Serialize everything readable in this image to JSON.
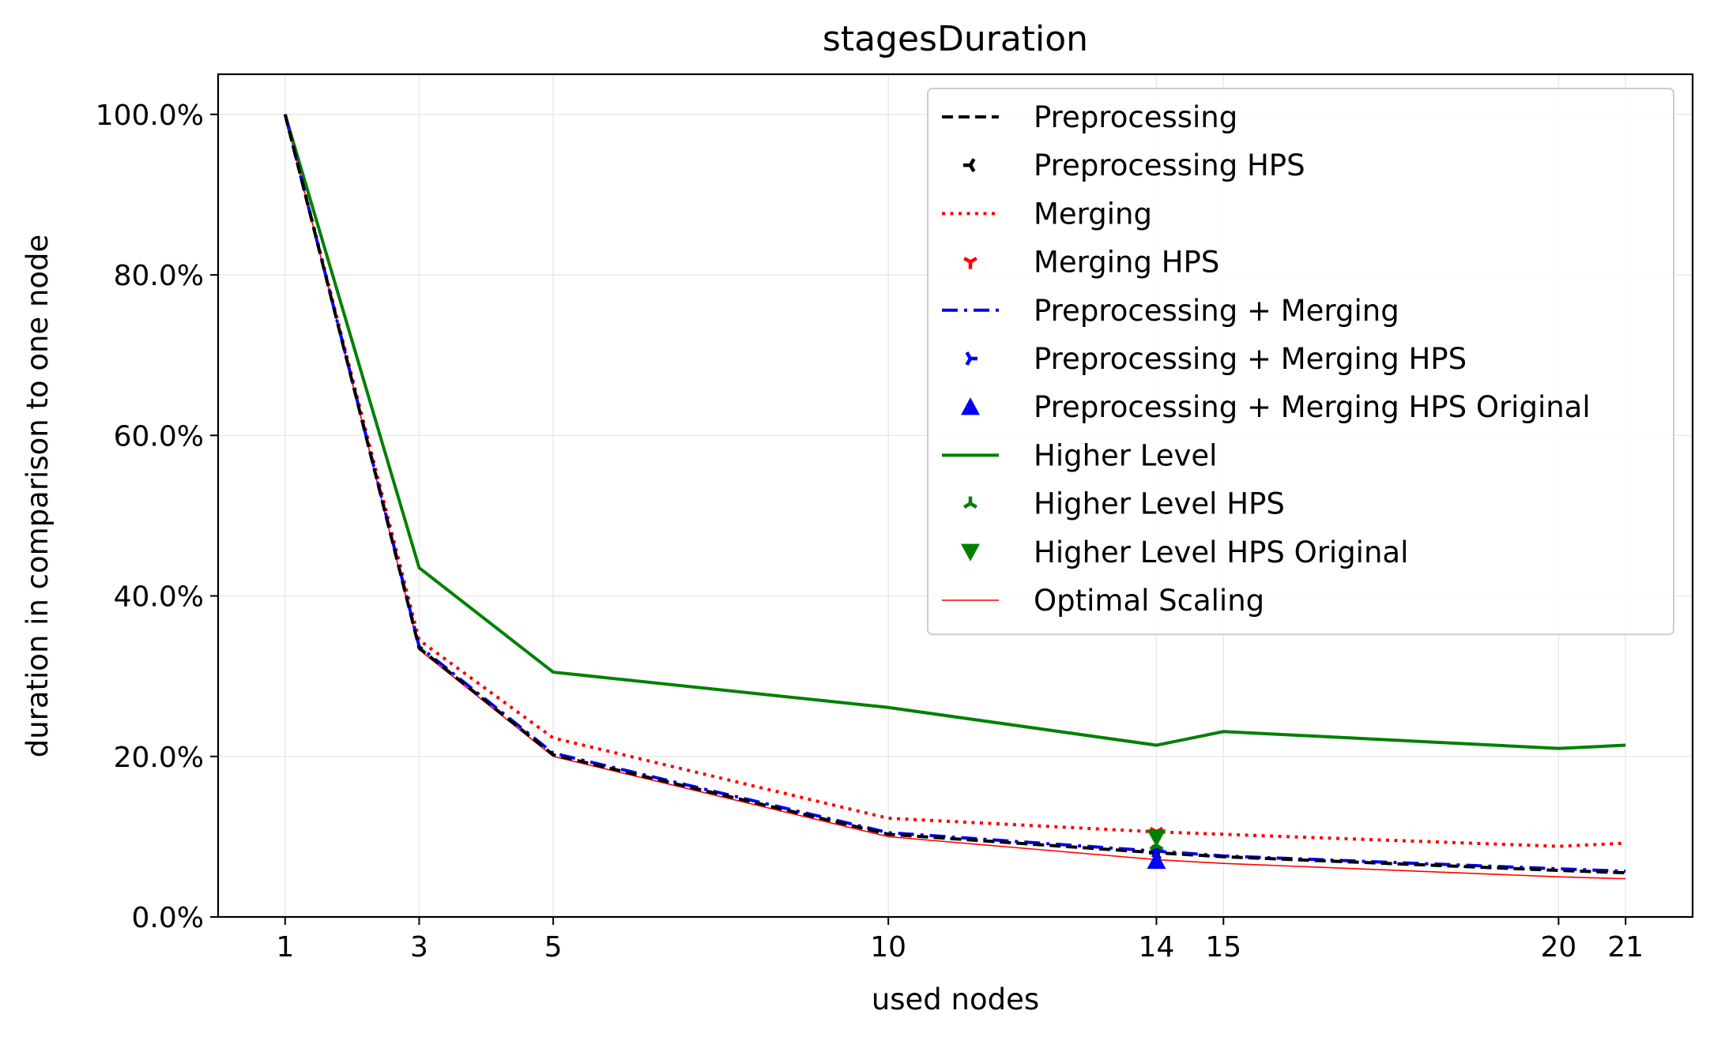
{
  "chart_data": {
    "type": "line",
    "title": "stagesDuration",
    "xlabel": "used nodes",
    "ylabel": "duration in comparison to one node",
    "x_ticks": [
      1,
      3,
      5,
      10,
      14,
      15,
      20,
      21
    ],
    "x_tick_labels": [
      "1",
      "3",
      "5",
      "10",
      "14",
      "15",
      "20",
      "21"
    ],
    "y_ticks": [
      0,
      20,
      40,
      60,
      80,
      100
    ],
    "y_tick_labels": [
      "0.0%",
      "20.0%",
      "40.0%",
      "60.0%",
      "80.0%",
      "100.0%"
    ],
    "xlim": [
      0,
      22
    ],
    "ylim": [
      0,
      105
    ],
    "grid": true,
    "legend_position": "top-right",
    "highlight_x": 14,
    "series": [
      {
        "name": "Preprocessing",
        "kind": "line",
        "color": "#000000",
        "dash": "dashed",
        "x": [
          1,
          3,
          5,
          10,
          14,
          15,
          20,
          21
        ],
        "y": [
          100,
          33.5,
          20.2,
          10.3,
          8.0,
          7.5,
          5.8,
          5.5
        ]
      },
      {
        "name": "Preprocessing HPS",
        "kind": "marker",
        "marker": "tri_left",
        "color": "#000000",
        "x": [
          14
        ],
        "y": [
          8.0
        ]
      },
      {
        "name": "Merging",
        "kind": "line",
        "color": "#ff0000",
        "dash": "dotted",
        "x": [
          1,
          3,
          5,
          10,
          14,
          15,
          20,
          21
        ],
        "y": [
          100,
          34.5,
          22.3,
          12.3,
          10.6,
          10.3,
          8.8,
          9.2
        ]
      },
      {
        "name": "Merging HPS",
        "kind": "marker",
        "marker": "tri_down",
        "color": "#ff0000",
        "x": [
          14
        ],
        "y": [
          10.6
        ]
      },
      {
        "name": "Preprocessing + Merging",
        "kind": "line",
        "color": "#0000ff",
        "dash": "dashdot",
        "x": [
          1,
          3,
          5,
          10,
          14,
          15,
          20,
          21
        ],
        "y": [
          100,
          33.7,
          20.4,
          10.5,
          8.2,
          7.6,
          6.0,
          5.7
        ]
      },
      {
        "name": "Preprocessing + Merging HPS",
        "kind": "marker",
        "marker": "tri_right",
        "color": "#0000ff",
        "x": [
          14
        ],
        "y": [
          8.2
        ]
      },
      {
        "name": "Preprocessing + Merging HPS Original",
        "kind": "marker",
        "marker": "triangle_up",
        "color": "#0000ff",
        "x": [
          14
        ],
        "y": [
          7.0
        ]
      },
      {
        "name": "Higher Level",
        "kind": "line",
        "color": "#008000",
        "dash": "solid",
        "x": [
          1,
          3,
          5,
          10,
          14,
          15,
          20,
          21
        ],
        "y": [
          100,
          43.5,
          30.5,
          26.1,
          21.4,
          23.1,
          21.0,
          21.4
        ]
      },
      {
        "name": "Higher Level HPS",
        "kind": "marker",
        "marker": "tri_up",
        "color": "#008000",
        "x": [
          14
        ],
        "y": [
          8.9
        ]
      },
      {
        "name": "Higher Level HPS Original",
        "kind": "marker",
        "marker": "triangle_down",
        "color": "#008000",
        "x": [
          14
        ],
        "y": [
          9.9
        ]
      },
      {
        "name": "Optimal Scaling",
        "kind": "line",
        "color": "#ff0000",
        "dash": "thin",
        "x": [
          1,
          3,
          5,
          10,
          14,
          15,
          20,
          21
        ],
        "y": [
          100,
          33.3,
          20.0,
          10.0,
          7.14,
          6.67,
          5.0,
          4.76
        ]
      }
    ]
  }
}
